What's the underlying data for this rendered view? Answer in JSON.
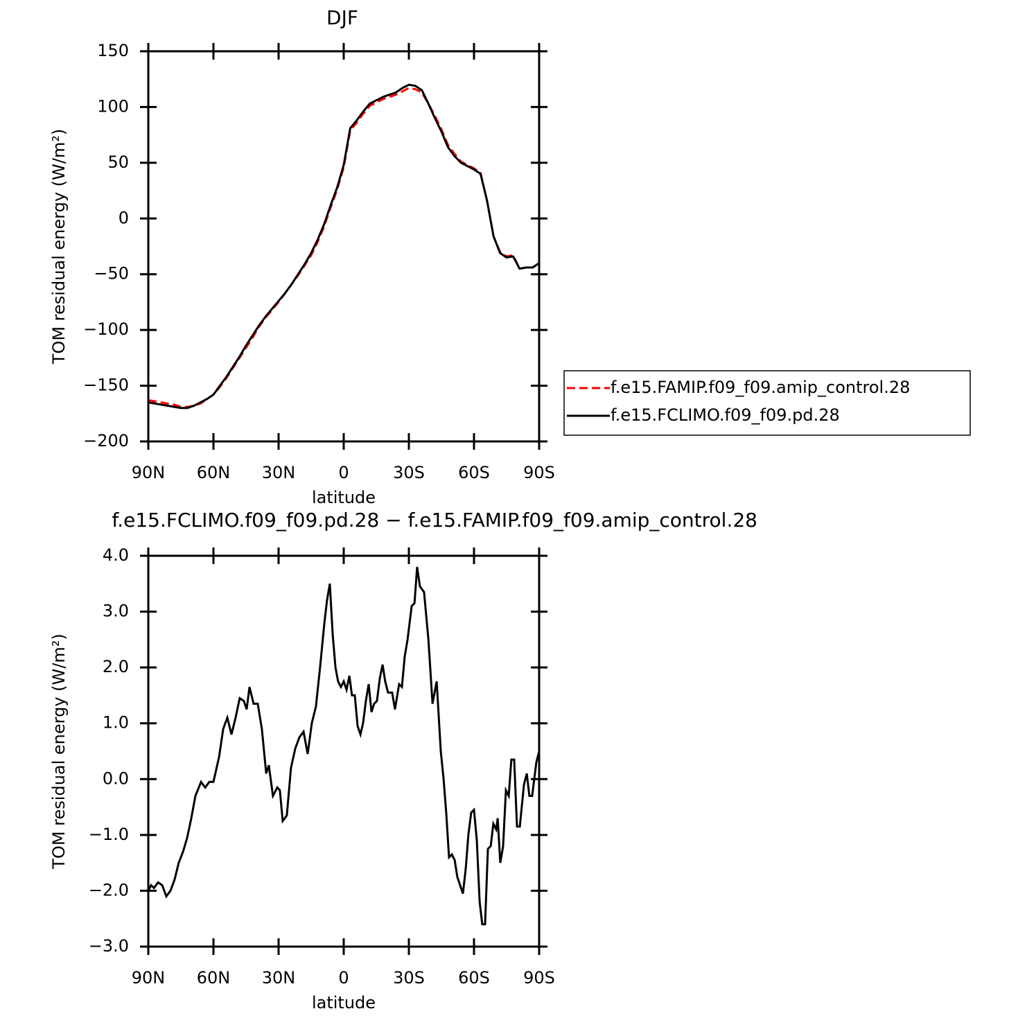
{
  "chart_data": [
    {
      "type": "line",
      "title": "DJF",
      "xlabel": "latitude",
      "ylabel": "TOM residual energy (W/m²)",
      "xlim": [
        90,
        -90
      ],
      "xticks": [
        {
          "value": 90,
          "label": "90N"
        },
        {
          "value": 60,
          "label": "60N"
        },
        {
          "value": 30,
          "label": "30N"
        },
        0,
        {
          "value": -30,
          "label": "30S"
        },
        {
          "value": -60,
          "label": "60S"
        },
        {
          "value": -90,
          "label": "90S"
        }
      ],
      "ylim": [
        -200,
        150
      ],
      "yticks": [
        {
          "value": -200,
          "label": "−200"
        },
        {
          "value": -150,
          "label": "−150"
        },
        {
          "value": -100,
          "label": "−100"
        },
        {
          "value": -50,
          "label": "−50"
        },
        0,
        50,
        100,
        150
      ],
      "legend": "outside right",
      "x": [
        90,
        87,
        84,
        81,
        78,
        75,
        72,
        69,
        66,
        63,
        60,
        57,
        54,
        51,
        48,
        45,
        42,
        39,
        36,
        33,
        30,
        27,
        24,
        21,
        18,
        15,
        12,
        9,
        6,
        3,
        0,
        -3,
        -6,
        -9,
        -12,
        -15,
        -18,
        -21,
        -24,
        -27,
        -30,
        -33,
        -36,
        -39,
        -42,
        -45,
        -48,
        -51,
        -54,
        -57,
        -60,
        -63,
        -66,
        -69,
        -72,
        -75,
        -78,
        -81,
        -84,
        -87,
        -90
      ],
      "series": [
        {
          "name": "f.e15.FAMIP.f09_f09.amip_control.28",
          "color": "#ff0000",
          "dashed": true,
          "values": [
            -163,
            -164,
            -165,
            -166,
            -167,
            -169,
            -169,
            -168,
            -166,
            -162,
            -158,
            -151,
            -143,
            -134,
            -125,
            -116,
            -107,
            -97,
            -89,
            -82,
            -75,
            -67,
            -59,
            -51,
            -42,
            -33,
            -21,
            -7,
            10,
            26,
            46,
            79,
            86,
            94,
            101,
            104,
            107,
            109,
            111,
            114,
            117,
            116,
            113,
            103,
            92,
            80,
            66,
            58,
            51,
            48,
            45,
            41,
            16,
            -16,
            -30,
            -34,
            -33,
            -45,
            -44,
            -44,
            -40
          ]
        },
        {
          "name": "f.e15.FCLIMO.f09_f09.pd.28",
          "color": "#000000",
          "dashed": false,
          "values": [
            -165,
            -166,
            -167,
            -168,
            -169,
            -170,
            -170,
            -168,
            -165,
            -162,
            -158,
            -150,
            -142,
            -133,
            -124,
            -114,
            -105,
            -96,
            -88,
            -81,
            -74,
            -67,
            -59,
            -50,
            -41,
            -31,
            -19,
            -5,
            12,
            28,
            48,
            81,
            88,
            96,
            103,
            106,
            109,
            111,
            113,
            117,
            120,
            119,
            115,
            103,
            90,
            78,
            64,
            56,
            50,
            47,
            44,
            40,
            16,
            -16,
            -31,
            -35,
            -34,
            -45,
            -44,
            -44,
            -40
          ]
        }
      ]
    },
    {
      "type": "line",
      "title": "f.e15.FCLIMO.f09_f09.pd.28 − f.e15.FAMIP.f09_f09.amip_control.28",
      "xlabel": "latitude",
      "ylabel": "TOM residual energy (W/m²)",
      "xlim": [
        90,
        -90
      ],
      "xticks": [
        {
          "value": 90,
          "label": "90N"
        },
        {
          "value": 60,
          "label": "60N"
        },
        {
          "value": 30,
          "label": "30N"
        },
        0,
        {
          "value": -30,
          "label": "30S"
        },
        {
          "value": -60,
          "label": "60S"
        },
        {
          "value": -90,
          "label": "90S"
        }
      ],
      "ylim": [
        -3,
        4
      ],
      "yticks": [
        {
          "value": -3,
          "label": "−3.0"
        },
        {
          "value": -2,
          "label": "−2.0"
        },
        {
          "value": -1,
          "label": "−1.0"
        },
        {
          "value": 0,
          "label": "0.0"
        },
        {
          "value": 1,
          "label": "1.0"
        },
        {
          "value": 2,
          "label": "2.0"
        },
        {
          "value": 3,
          "label": "3.0"
        },
        {
          "value": 4,
          "label": "4.0"
        }
      ],
      "x": [
        90,
        88.7,
        87.4,
        85.5,
        83.6,
        81.7,
        79.8,
        77.9,
        76.0,
        74.0,
        72.1,
        70.2,
        68.3,
        65.7,
        63.8,
        61.9,
        60.0,
        57.4,
        55.5,
        53.6,
        51.7,
        49.8,
        47.9,
        46.0,
        44.7,
        43.4,
        41.5,
        39.6,
        37.7,
        35.7,
        34.5,
        32.6,
        30.6,
        29.4,
        28.1,
        26.2,
        24.3,
        22.3,
        20.4,
        18.5,
        16.6,
        14.7,
        12.8,
        10.9,
        8.9,
        7.7,
        6.4,
        5.1,
        3.8,
        2.6,
        1.3,
        0,
        -1.3,
        -2.6,
        -3.8,
        -5.1,
        -6.4,
        -7.7,
        -8.9,
        -10.2,
        -11.5,
        -12.8,
        -14.0,
        -15.3,
        -16.6,
        -17.9,
        -19.1,
        -20.4,
        -22.3,
        -23.6,
        -25.5,
        -26.8,
        -28.1,
        -29.4,
        -31.3,
        -32.6,
        -33.8,
        -35.1,
        -37.0,
        -39.0,
        -40.9,
        -42.8,
        -44.7,
        -46.0,
        -47.2,
        -48.5,
        -49.8,
        -51.1,
        -52.3,
        -53.6,
        -54.9,
        -56.2,
        -57.4,
        -58.7,
        -60.0,
        -61.3,
        -62.6,
        -63.8,
        -65.1,
        -66.4,
        -67.7,
        -68.9,
        -70.2,
        -70.9,
        -72.1,
        -73.4,
        -74.7,
        -76.0,
        -77.2,
        -78.5,
        -79.8,
        -81.1,
        -83.0,
        -84.3,
        -85.5,
        -86.8,
        -88.7,
        -90
      ],
      "series": [
        {
          "color": "#000000",
          "dashed": false,
          "values": [
            -2.0,
            -1.9,
            -1.95,
            -1.85,
            -1.9,
            -2.1,
            -2.0,
            -1.8,
            -1.5,
            -1.3,
            -1.05,
            -0.7,
            -0.3,
            -0.05,
            -0.15,
            -0.05,
            -0.05,
            0.4,
            0.9,
            1.1,
            0.8,
            1.1,
            1.45,
            1.4,
            1.25,
            1.65,
            1.35,
            1.35,
            0.9,
            0.1,
            0.25,
            -0.3,
            -0.15,
            -0.2,
            -0.75,
            -0.65,
            0.2,
            0.55,
            0.75,
            0.85,
            0.45,
            1.0,
            1.3,
            2.0,
            2.8,
            3.2,
            3.5,
            2.6,
            2.0,
            1.75,
            1.65,
            1.75,
            1.6,
            1.85,
            1.5,
            1.5,
            0.95,
            0.8,
            1.0,
            1.4,
            1.7,
            1.2,
            1.35,
            1.4,
            1.8,
            2.05,
            1.75,
            1.55,
            1.55,
            1.25,
            1.7,
            1.65,
            2.2,
            2.5,
            3.1,
            3.15,
            3.8,
            3.45,
            3.35,
            2.5,
            1.35,
            1.75,
            0.5,
            0.0,
            -0.6,
            -1.4,
            -1.35,
            -1.45,
            -1.75,
            -1.9,
            -2.05,
            -1.6,
            -1.0,
            -0.6,
            -0.55,
            -1.1,
            -2.2,
            -2.6,
            -2.6,
            -1.25,
            -1.2,
            -0.8,
            -0.9,
            -0.7,
            -1.5,
            -1.2,
            -0.2,
            -0.3,
            0.35,
            0.35,
            -0.85,
            -0.85,
            -0.1,
            0.1,
            -0.3,
            -0.3,
            0.3,
            0.5
          ]
        }
      ]
    }
  ]
}
